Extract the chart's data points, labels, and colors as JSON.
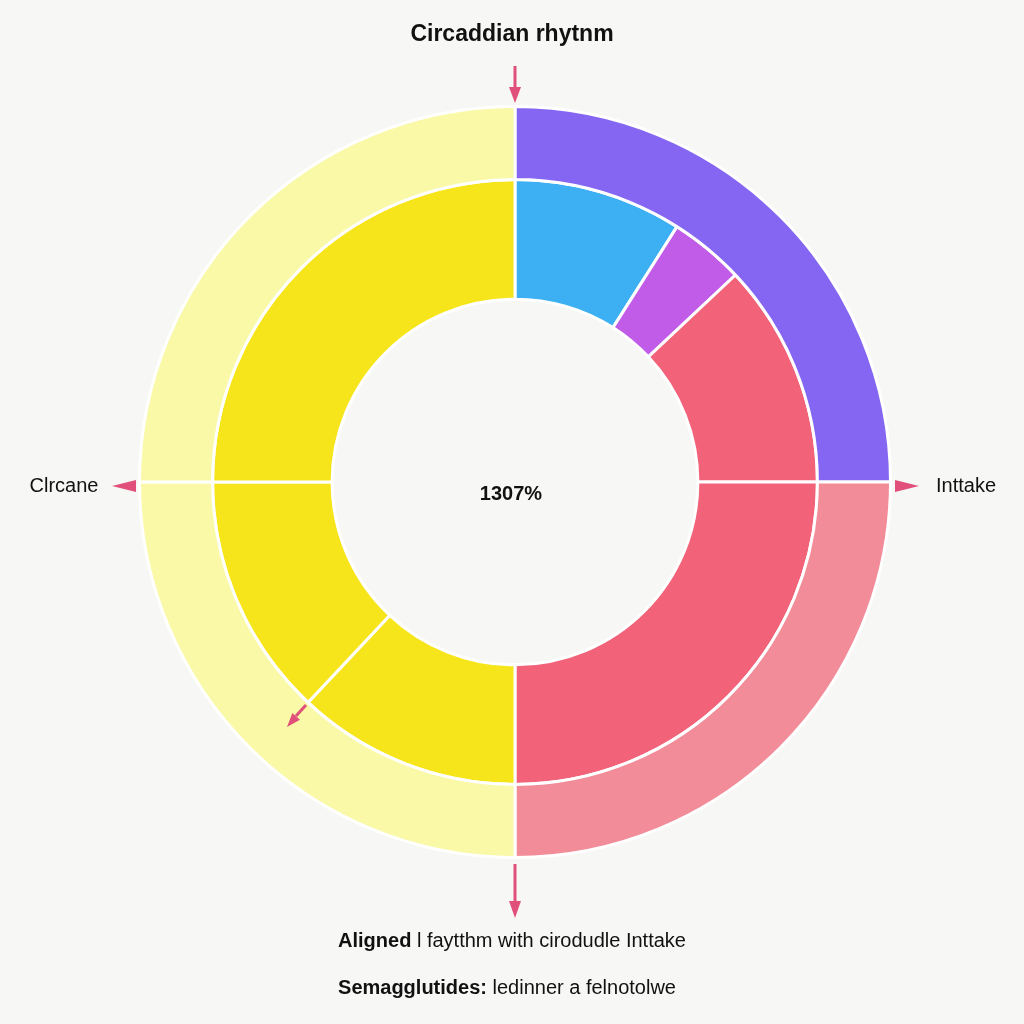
{
  "chart_data": {
    "type": "donut",
    "title": "Circaddian rhytnm",
    "series": [
      {
        "values": [
          25,
          25,
          25,
          25
        ],
        "colors": [
          "#8466f2",
          "#f28c98",
          "#f9f9a8",
          "#f9f9a8"
        ]
      },
      {
        "values": [
          9,
          4,
          12,
          25,
          12,
          13,
          25
        ],
        "colors": [
          "#3db0f3",
          "#c05ce8",
          "#f2637a",
          "#f2637a",
          "#f7e51b",
          "#f7e51b",
          "#f7e51b"
        ]
      }
    ],
    "annotations": [
      "Clrcane",
      "Inttake",
      "1307%",
      "Aligned l faytthm with cirodudle Inttake",
      "Semagglutides: ledinner a felnotolwe"
    ]
  }
}
